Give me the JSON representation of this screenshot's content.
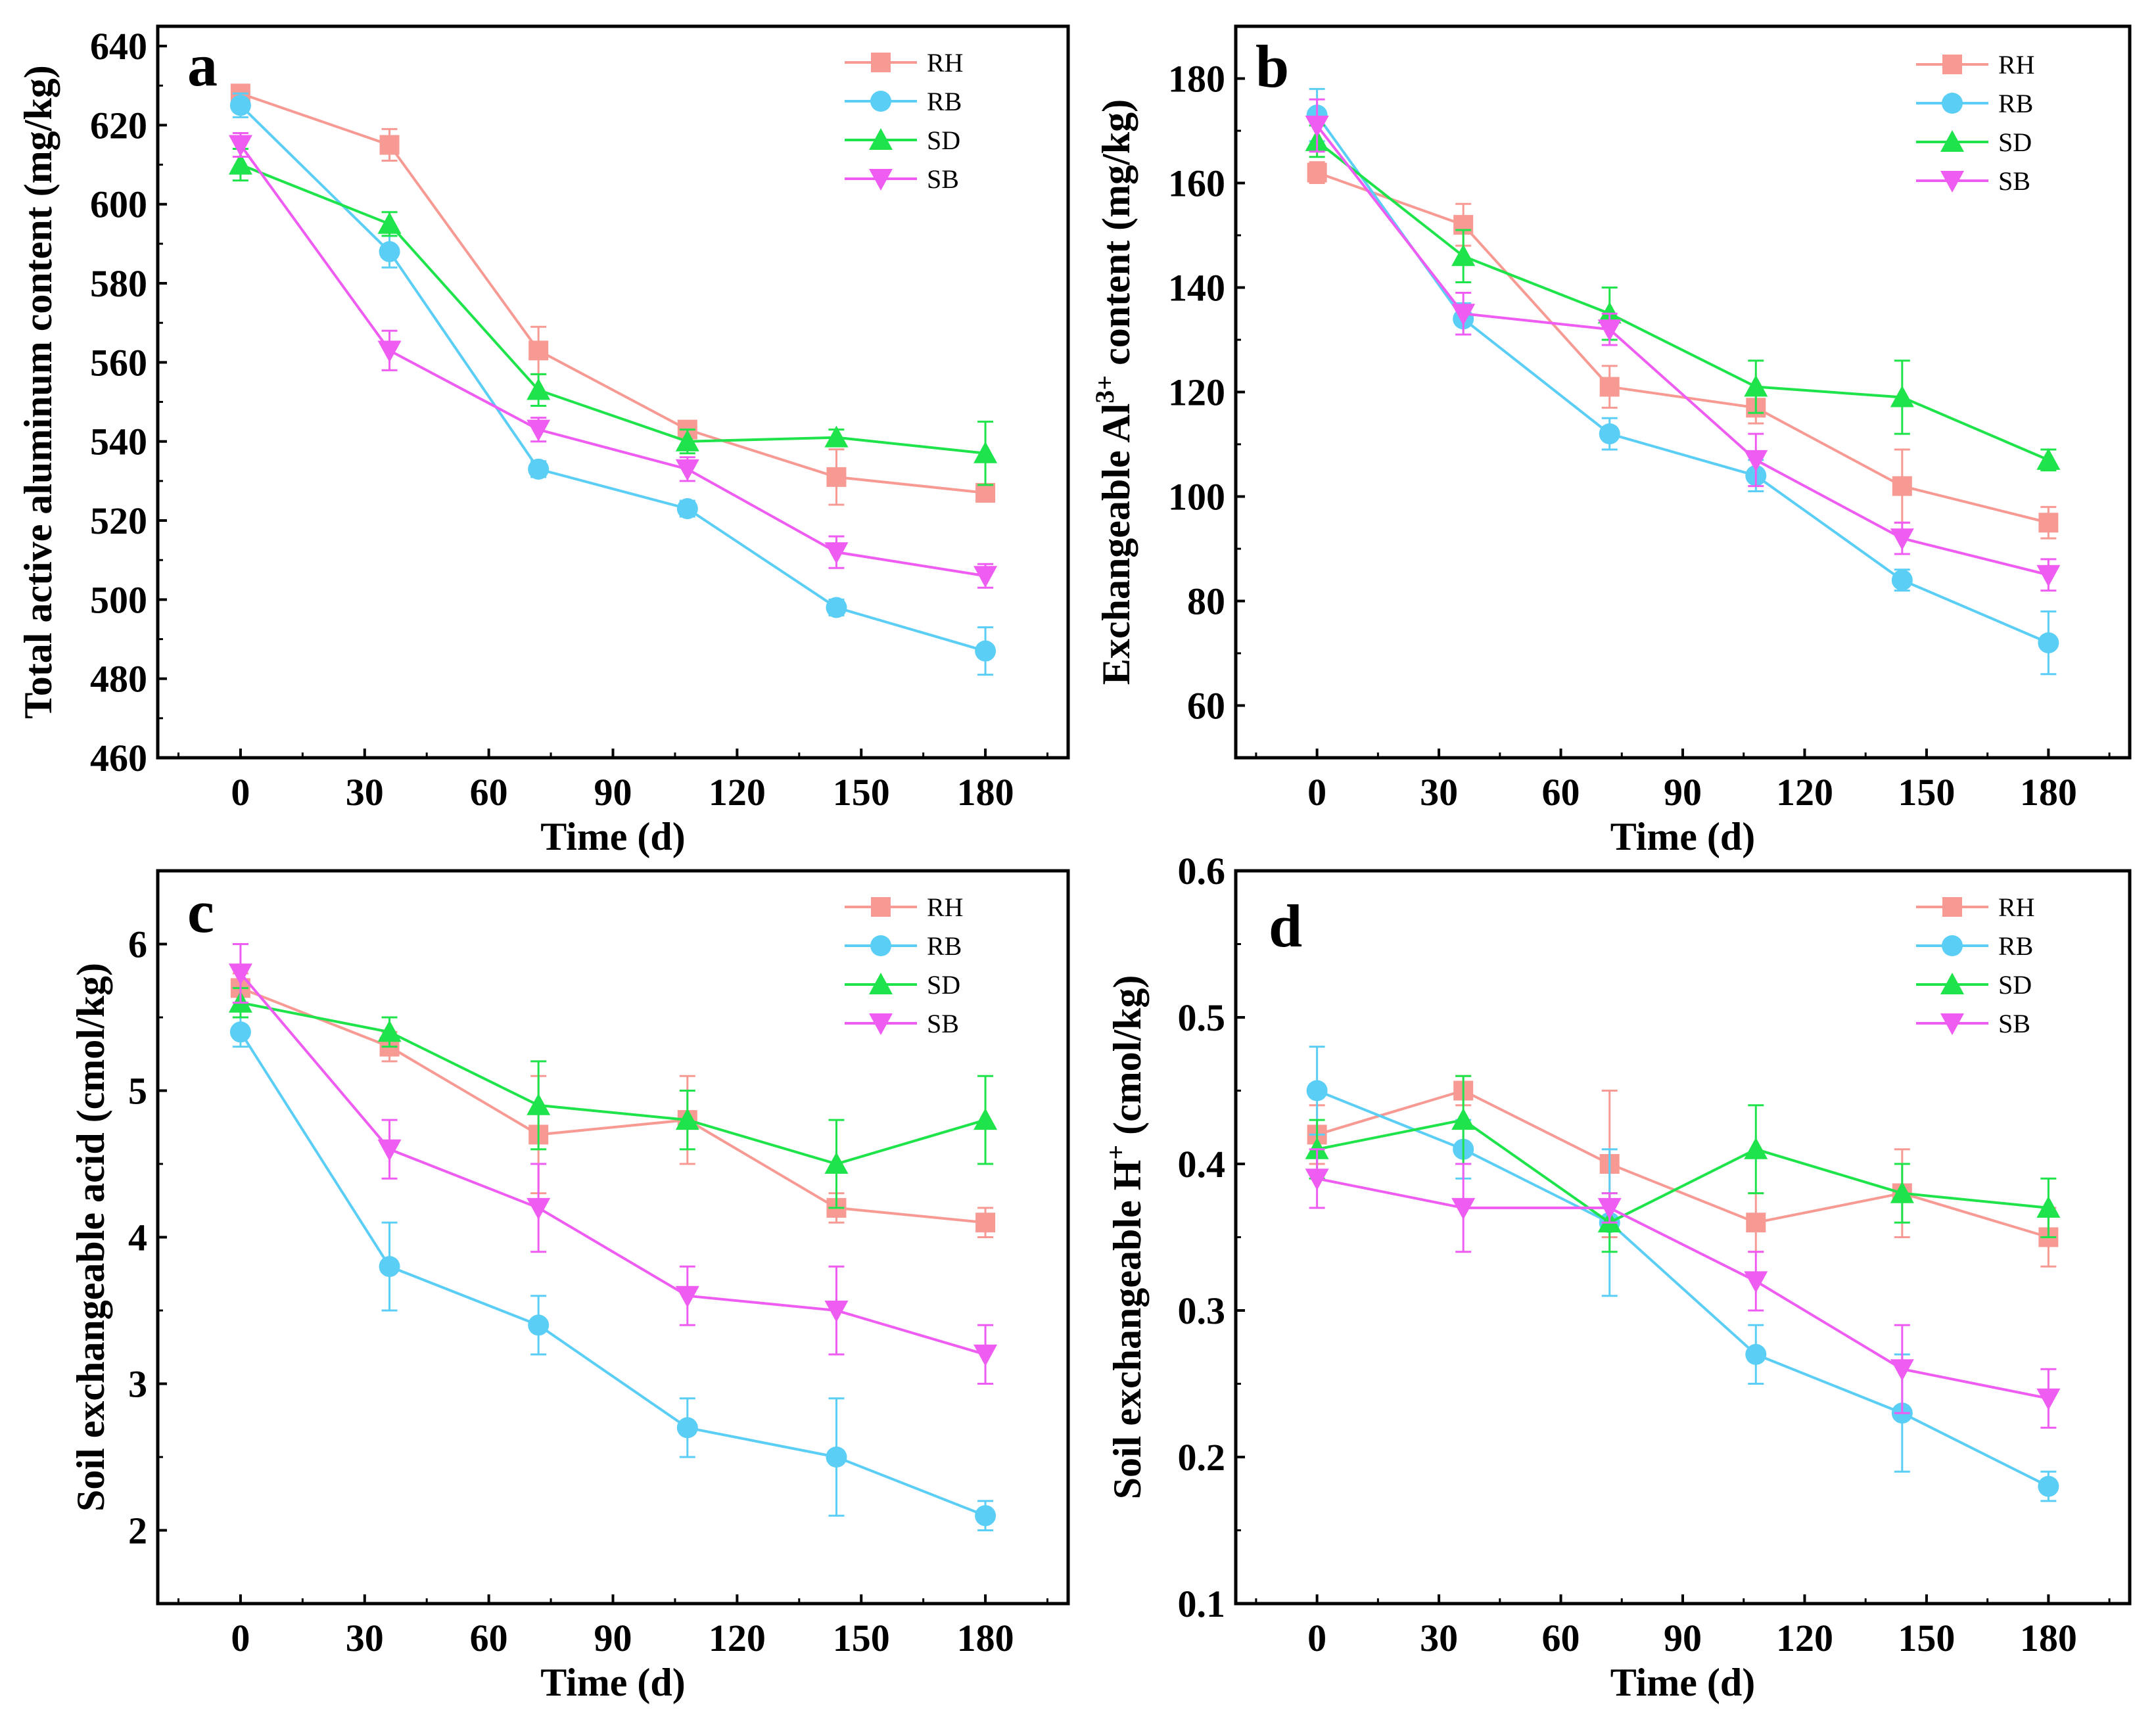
{
  "colors": {
    "RH": "#f89a94",
    "RB": "#5bcef5",
    "SD": "#1ee34a",
    "SB": "#ef5cf2"
  },
  "chart_data": [
    {
      "type": "line",
      "panel": "a",
      "xlabel": "Time (d)",
      "ylabel": "Total active aluminum content (mg/kg)",
      "xlim": [
        -20,
        200
      ],
      "ylim": [
        460,
        645
      ],
      "xticks": [
        0,
        30,
        60,
        90,
        120,
        150,
        180
      ],
      "yticks": [
        460,
        480,
        500,
        520,
        540,
        560,
        580,
        600,
        620,
        640
      ],
      "x": [
        0,
        36,
        72,
        108,
        144,
        180
      ],
      "legend": "top-right",
      "series": [
        {
          "name": "RH",
          "marker": "square",
          "values": [
            628,
            615,
            563,
            543,
            531,
            527
          ],
          "errors": [
            2,
            4,
            6,
            2,
            7,
            2
          ]
        },
        {
          "name": "RB",
          "marker": "circle",
          "values": [
            625,
            588,
            533,
            523,
            498,
            487
          ],
          "errors": [
            3,
            4,
            2,
            2,
            2,
            6
          ]
        },
        {
          "name": "SD",
          "marker": "triangle-up",
          "values": [
            610,
            595,
            553,
            540,
            541,
            537
          ],
          "errors": [
            4,
            3,
            4,
            3,
            2,
            8
          ]
        },
        {
          "name": "SB",
          "marker": "triangle-down",
          "values": [
            615,
            563,
            543,
            533,
            512,
            506
          ],
          "errors": [
            3,
            5,
            3,
            3,
            4,
            3
          ]
        }
      ]
    },
    {
      "type": "line",
      "panel": "b",
      "xlabel": "Time (d)",
      "ylabel": "Exchangeable Al",
      "ylabel_sup": "3+",
      "ylabel_suffix": " content (mg/kg)",
      "xlim": [
        -20,
        200
      ],
      "ylim": [
        50,
        190
      ],
      "xticks": [
        0,
        30,
        60,
        90,
        120,
        150,
        180
      ],
      "yticks": [
        60,
        80,
        100,
        120,
        140,
        160,
        180
      ],
      "x": [
        0,
        36,
        72,
        108,
        144,
        180
      ],
      "legend": "top-right",
      "series": [
        {
          "name": "RH",
          "marker": "square",
          "values": [
            162,
            152,
            121,
            117,
            102,
            95
          ],
          "errors": [
            2,
            4,
            4,
            3,
            7,
            3
          ]
        },
        {
          "name": "RB",
          "marker": "circle",
          "values": [
            173,
            134,
            112,
            104,
            84,
            72
          ],
          "errors": [
            5,
            3,
            3,
            3,
            2,
            6
          ]
        },
        {
          "name": "SD",
          "marker": "triangle-up",
          "values": [
            168,
            146,
            135,
            121,
            119,
            107
          ],
          "errors": [
            3,
            5,
            5,
            5,
            7,
            2
          ]
        },
        {
          "name": "SB",
          "marker": "triangle-down",
          "values": [
            171,
            135,
            132,
            107,
            92,
            85
          ],
          "errors": [
            5,
            4,
            3,
            5,
            3,
            3
          ]
        }
      ]
    },
    {
      "type": "line",
      "panel": "c",
      "xlabel": "Time (d)",
      "ylabel": "Soil exchangeable acid (cmol/kg)",
      "xlim": [
        -20,
        200
      ],
      "ylim": [
        1.5,
        6.5
      ],
      "xticks": [
        0,
        30,
        60,
        90,
        120,
        150,
        180
      ],
      "yticks": [
        2,
        3,
        4,
        5,
        6
      ],
      "x": [
        0,
        36,
        72,
        108,
        144,
        180
      ],
      "legend": "top-right",
      "series": [
        {
          "name": "RH",
          "marker": "square",
          "values": [
            5.7,
            5.3,
            4.7,
            4.8,
            4.2,
            4.1
          ],
          "errors": [
            0.1,
            0.1,
            0.4,
            0.3,
            0.1,
            0.1
          ]
        },
        {
          "name": "RB",
          "marker": "circle",
          "values": [
            5.4,
            3.8,
            3.4,
            2.7,
            2.5,
            2.1
          ],
          "errors": [
            0.1,
            0.3,
            0.2,
            0.2,
            0.4,
            0.1
          ]
        },
        {
          "name": "SD",
          "marker": "triangle-up",
          "values": [
            5.6,
            5.4,
            4.9,
            4.8,
            4.5,
            4.8
          ],
          "errors": [
            0.1,
            0.1,
            0.3,
            0.2,
            0.3,
            0.3
          ]
        },
        {
          "name": "SB",
          "marker": "triangle-down",
          "values": [
            5.8,
            4.6,
            4.2,
            3.6,
            3.5,
            3.2
          ],
          "errors": [
            0.2,
            0.2,
            0.3,
            0.2,
            0.3,
            0.2
          ]
        }
      ]
    },
    {
      "type": "line",
      "panel": "d",
      "xlabel": "Time (d)",
      "ylabel": "Soil exchangeable H",
      "ylabel_sup": "+",
      "ylabel_suffix": " (cmol/kg)",
      "xlim": [
        -20,
        200
      ],
      "ylim": [
        0.1,
        0.6
      ],
      "xticks": [
        0,
        30,
        60,
        90,
        120,
        150,
        180
      ],
      "yticks": [
        0.1,
        0.2,
        0.3,
        0.4,
        0.5,
        0.6
      ],
      "x": [
        0,
        36,
        72,
        108,
        144,
        180
      ],
      "legend": "top-right",
      "series": [
        {
          "name": "RH",
          "marker": "square",
          "values": [
            0.42,
            0.45,
            0.4,
            0.36,
            0.38,
            0.35
          ],
          "errors": [
            0.02,
            0.01,
            0.05,
            0.02,
            0.03,
            0.02
          ]
        },
        {
          "name": "RB",
          "marker": "circle",
          "values": [
            0.45,
            0.41,
            0.36,
            0.27,
            0.23,
            0.18
          ],
          "errors": [
            0.03,
            0.02,
            0.05,
            0.02,
            0.04,
            0.01
          ]
        },
        {
          "name": "SD",
          "marker": "triangle-up",
          "values": [
            0.41,
            0.43,
            0.36,
            0.41,
            0.38,
            0.37
          ],
          "errors": [
            0.02,
            0.03,
            0.02,
            0.03,
            0.02,
            0.02
          ]
        },
        {
          "name": "SB",
          "marker": "triangle-down",
          "values": [
            0.39,
            0.37,
            0.37,
            0.32,
            0.26,
            0.24
          ],
          "errors": [
            0.02,
            0.03,
            0.01,
            0.02,
            0.03,
            0.02
          ]
        }
      ]
    }
  ]
}
